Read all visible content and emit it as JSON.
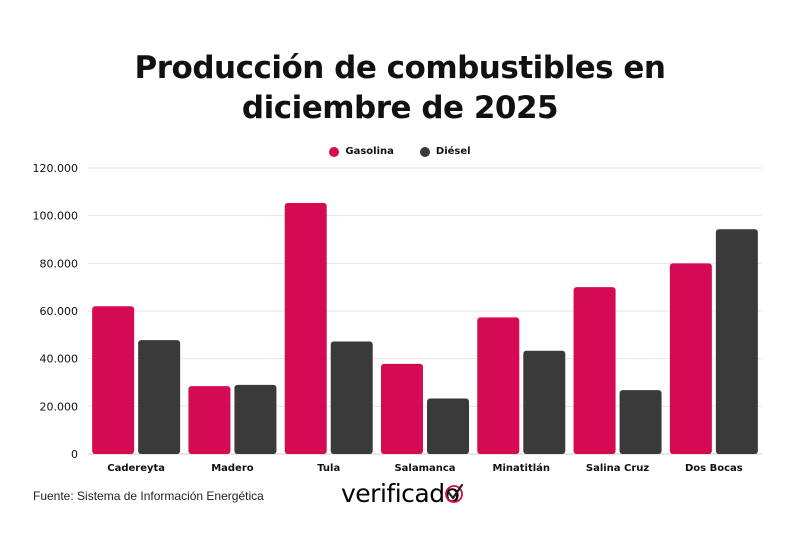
{
  "page": {
    "title_line1": "Producción de combustibles en",
    "title_line2": "diciembre de 2025",
    "source": "Fuente: Sistema de Información Energética",
    "logo_text": "verificado"
  },
  "colors": {
    "gasolina": "#d40a52",
    "diesel": "#3a3a3a",
    "grid": "#e6e6e6",
    "text": "#111111"
  },
  "chart_data": {
    "type": "bar",
    "title": "Producción de combustibles en diciembre de 2025",
    "xlabel": "",
    "ylabel": "",
    "categories": [
      "Cadereyta",
      "Madero",
      "Tula",
      "Salamanca",
      "Minatitlán",
      "Salina Cruz",
      "Dos Bocas"
    ],
    "series": [
      {
        "name": "Gasolina",
        "values": [
          62000,
          28500,
          105300,
          37800,
          57300,
          70000,
          80000
        ]
      },
      {
        "name": "Diésel",
        "values": [
          47800,
          29000,
          47200,
          23300,
          43300,
          26800,
          94300
        ]
      }
    ],
    "ylim": [
      0,
      120000
    ],
    "yticks": [
      "0",
      "20.000",
      "40.000",
      "60.000",
      "80.000",
      "100.000",
      "120.000"
    ],
    "ytick_values": [
      0,
      20000,
      40000,
      60000,
      80000,
      100000,
      120000
    ],
    "grid": true,
    "legend_position": "top-center"
  }
}
